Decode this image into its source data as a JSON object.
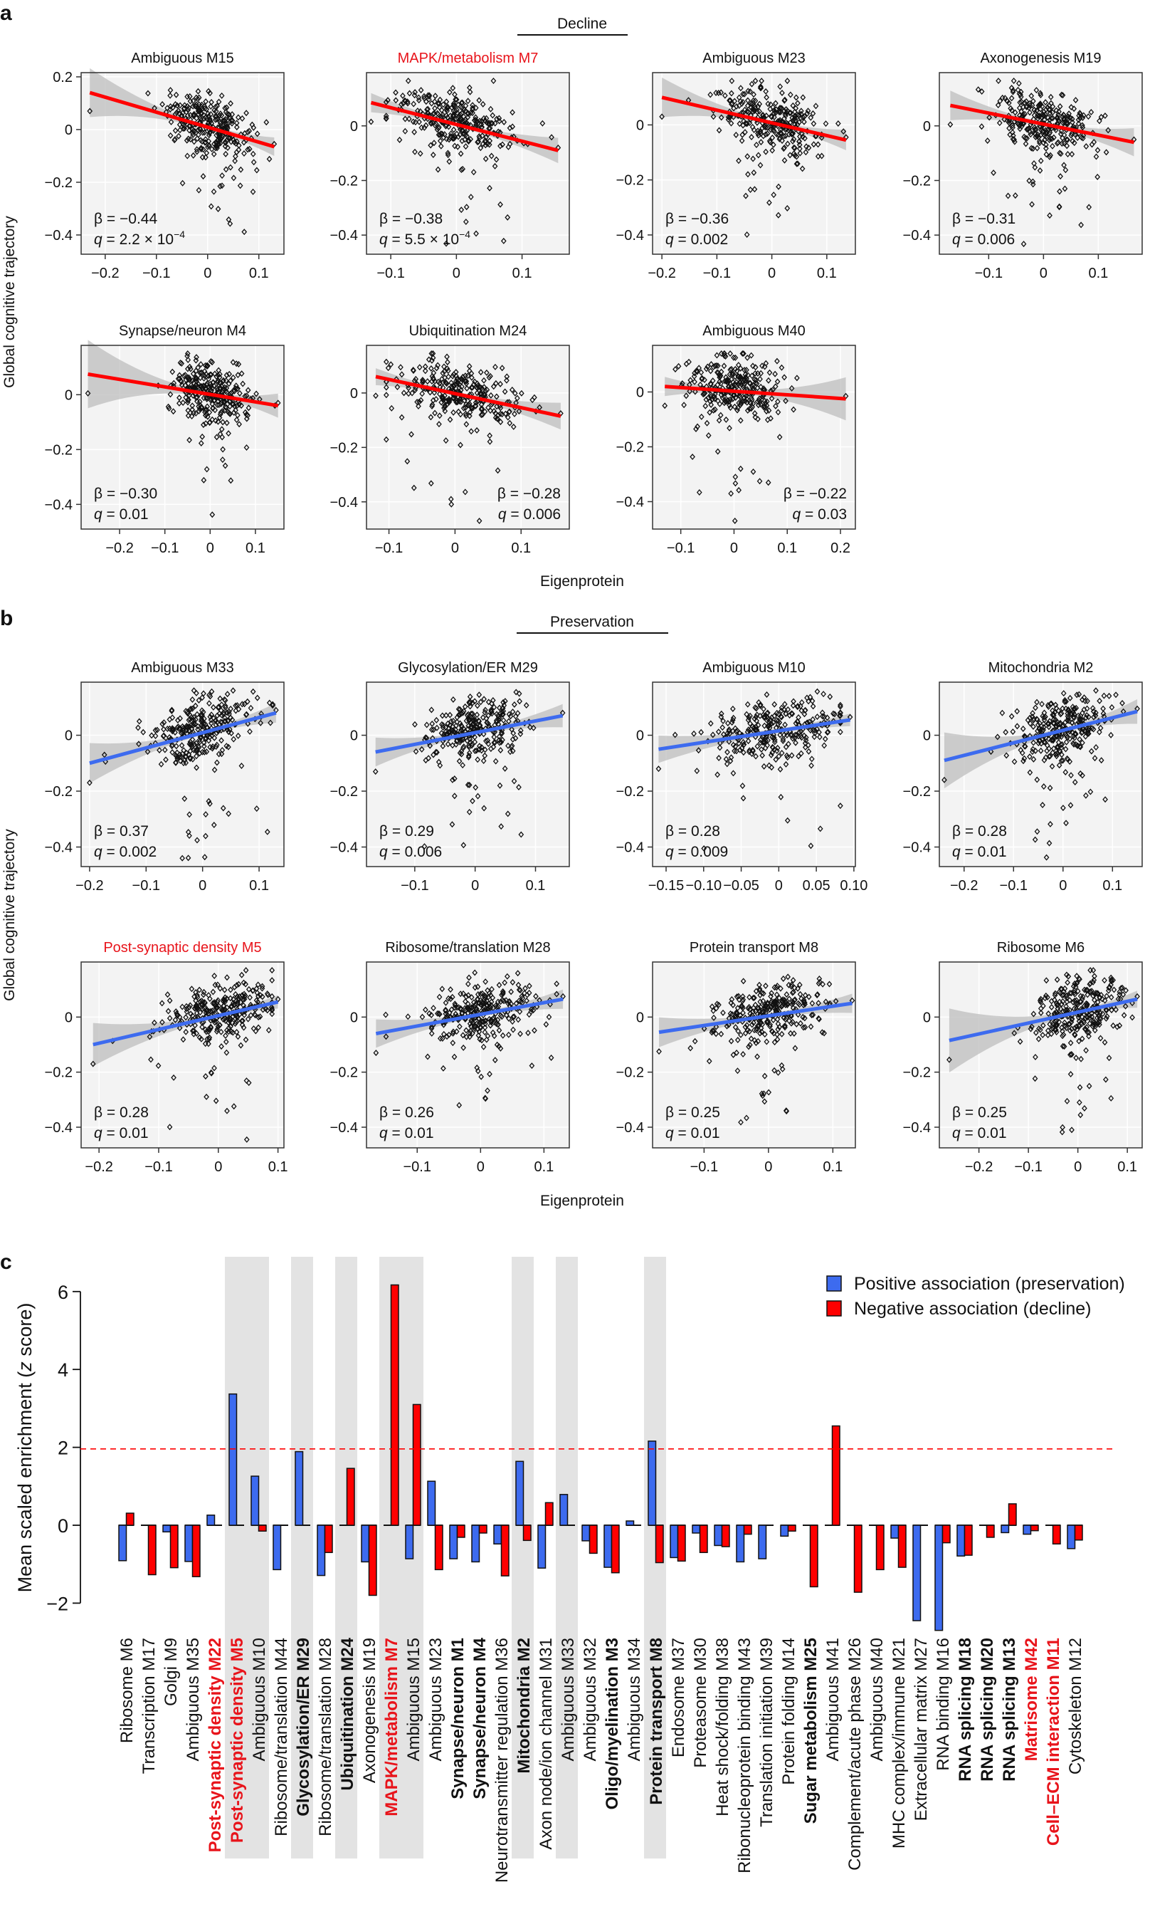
{
  "panel_a": {
    "label": "a",
    "group_title": "Decline"
  },
  "panel_b": {
    "label": "b",
    "group_title": "Preservation"
  },
  "panel_c": {
    "label": "c"
  },
  "y_axis_label": "Global cognitive trajectory",
  "x_axis_label": "Eigenprotein",
  "stat_symbols": {
    "beta": "β",
    "q": "q",
    "equals": " = "
  },
  "colors": {
    "decline": "#ff0000",
    "preservation": "#3d6bef",
    "highlight_title": "#e8141b",
    "band": "#bdbdbd",
    "shade": "#e3e3e3"
  },
  "chart_data": [
    {
      "type": "scatter",
      "panel": "a",
      "title": "Ambiguous M15",
      "title_color": "#111111",
      "beta": "−0.44",
      "q": "2.2 × 10",
      "q_exp": "−4",
      "xlim": [
        -0.247,
        0.149
      ],
      "ylim": [
        -0.473,
        0.216
      ],
      "xticks": [
        "−0.2",
        "−0.1",
        "0",
        "0.1"
      ],
      "yticks": [
        "0.2",
        "0",
        "−0.2",
        "−0.4"
      ],
      "fit_line": {
        "x": [
          -0.23,
          0.13
        ],
        "y": [
          0.14,
          -0.065
        ]
      },
      "line_color": "#ff0000",
      "stats_position": "bottom-left"
    },
    {
      "type": "scatter",
      "panel": "a",
      "title": "MAPK/metabolism M7",
      "title_color": "#e8141b",
      "beta": "−0.38",
      "q": "5.5 × 10",
      "q_exp": "−4",
      "xlim": [
        -0.137,
        0.172
      ],
      "ylim": [
        -0.47,
        0.195
      ],
      "xticks": [
        "−0.1",
        "0",
        "0.1"
      ],
      "yticks": [
        "0",
        "−0.2",
        "−0.4"
      ],
      "fit_line": {
        "x": [
          -0.13,
          0.155
        ],
        "y": [
          0.085,
          -0.09
        ]
      },
      "line_color": "#ff0000",
      "stats_position": "bottom-left"
    },
    {
      "type": "scatter",
      "panel": "a",
      "title": "Ambiguous M23",
      "title_color": "#111111",
      "beta": "−0.36",
      "q": "0.002",
      "xlim": [
        -0.217,
        0.152
      ],
      "ylim": [
        -0.47,
        0.19
      ],
      "xticks": [
        "−0.2",
        "−0.1",
        "0",
        "0.1"
      ],
      "yticks": [
        "0",
        "−0.2",
        "−0.4"
      ],
      "fit_line": {
        "x": [
          -0.2,
          0.135
        ],
        "y": [
          0.1,
          -0.055
        ]
      },
      "line_color": "#ff0000",
      "stats_position": "bottom-left"
    },
    {
      "type": "scatter",
      "panel": "a",
      "title": "Axonogenesis M19",
      "title_color": "#111111",
      "beta": "−0.31",
      "q": "0.006",
      "xlim": [
        -0.19,
        0.18
      ],
      "ylim": [
        -0.47,
        0.195
      ],
      "xticks": [
        "−0.1",
        "0",
        "0.1"
      ],
      "yticks": [
        "0",
        "−0.2",
        "−0.4"
      ],
      "fit_line": {
        "x": [
          -0.17,
          0.165
        ],
        "y": [
          0.075,
          -0.06
        ]
      },
      "line_color": "#ff0000",
      "stats_position": "bottom-left"
    },
    {
      "type": "scatter",
      "panel": "a",
      "title": "Synapse/neuron M4",
      "title_color": "#111111",
      "beta": "−0.30",
      "q": "0.01",
      "xlim": [
        -0.285,
        0.163
      ],
      "ylim": [
        -0.49,
        0.18
      ],
      "xticks": [
        "−0.2",
        "−0.1",
        "0",
        "0.1"
      ],
      "yticks": [
        "0",
        "−0.2",
        "−0.4"
      ],
      "fit_line": {
        "x": [
          -0.27,
          0.15
        ],
        "y": [
          0.075,
          -0.04
        ]
      },
      "line_color": "#ff0000",
      "stats_position": "bottom-left"
    },
    {
      "type": "scatter",
      "panel": "a",
      "title": "Ubiquitination M24",
      "title_color": "#111111",
      "beta": "−0.28",
      "q": "0.006",
      "xlim": [
        -0.134,
        0.173
      ],
      "ylim": [
        -0.5,
        0.175
      ],
      "xticks": [
        "−0.1",
        "0",
        "0.1"
      ],
      "yticks": [
        "0",
        "−0.2",
        "−0.4"
      ],
      "fit_line": {
        "x": [
          -0.12,
          0.16
        ],
        "y": [
          0.06,
          -0.085
        ]
      },
      "line_color": "#ff0000",
      "stats_position": "bottom-right"
    },
    {
      "type": "scatter",
      "panel": "a",
      "title": "Ambiguous M40",
      "title_color": "#111111",
      "beta": "−0.22",
      "q": "0.03",
      "xlim": [
        -0.153,
        0.228
      ],
      "ylim": [
        -0.5,
        0.17
      ],
      "xticks": [
        "−0.1",
        "0",
        "0.1",
        "0.2"
      ],
      "yticks": [
        "0",
        "−0.2",
        "−0.4"
      ],
      "fit_line": {
        "x": [
          -0.13,
          0.21
        ],
        "y": [
          0.02,
          -0.025
        ]
      },
      "line_color": "#ff0000",
      "stats_position": "bottom-right"
    },
    {
      "type": "scatter",
      "panel": "b",
      "title": "Ambiguous M33",
      "title_color": "#111111",
      "beta": "0.37",
      "q": "0.002",
      "xlim": [
        -0.215,
        0.144
      ],
      "ylim": [
        -0.47,
        0.19
      ],
      "xticks": [
        "−0.2",
        "−0.1",
        "0",
        "0.1"
      ],
      "yticks": [
        "0",
        "−0.2",
        "−0.4"
      ],
      "fit_line": {
        "x": [
          -0.2,
          0.13
        ],
        "y": [
          -0.1,
          0.08
        ]
      },
      "line_color": "#3d6bef",
      "stats_position": "bottom-left"
    },
    {
      "type": "scatter",
      "panel": "b",
      "title": "Glycosylation/ER M29",
      "title_color": "#111111",
      "beta": "0.29",
      "q": "0.006",
      "xlim": [
        -0.18,
        0.156
      ],
      "ylim": [
        -0.47,
        0.19
      ],
      "xticks": [
        "−0.1",
        "0",
        "0.1"
      ],
      "yticks": [
        "0",
        "−0.2",
        "−0.4"
      ],
      "fit_line": {
        "x": [
          -0.165,
          0.145
        ],
        "y": [
          -0.06,
          0.07
        ]
      },
      "line_color": "#3d6bef",
      "stats_position": "bottom-left"
    },
    {
      "type": "scatter",
      "panel": "b",
      "title": "Ambiguous M10",
      "title_color": "#111111",
      "beta": "0.28",
      "q": "0.009",
      "xlim": [
        -0.168,
        0.102
      ],
      "ylim": [
        -0.47,
        0.19
      ],
      "xticks": [
        "−0.15",
        "−0.10",
        "−0.05",
        "0",
        "0.05",
        "0.10"
      ],
      "yticks": [
        "0",
        "−0.2",
        "−0.4"
      ],
      "fit_line": {
        "x": [
          -0.16,
          0.095
        ],
        "y": [
          -0.05,
          0.055
        ]
      },
      "line_color": "#3d6bef",
      "stats_position": "bottom-left"
    },
    {
      "type": "scatter",
      "panel": "b",
      "title": "Mitochondria M2",
      "title_color": "#111111",
      "beta": "0.28",
      "q": "0.01",
      "xlim": [
        -0.25,
        0.16
      ],
      "ylim": [
        -0.47,
        0.19
      ],
      "xticks": [
        "−0.2",
        "−0.1",
        "0",
        "0.1"
      ],
      "yticks": [
        "0",
        "−0.2",
        "−0.4"
      ],
      "fit_line": {
        "x": [
          -0.24,
          0.15
        ],
        "y": [
          -0.09,
          0.085
        ]
      },
      "line_color": "#3d6bef",
      "stats_position": "bottom-left"
    },
    {
      "type": "scatter",
      "panel": "b",
      "title": "Post-synaptic density M5",
      "title_color": "#e8141b",
      "beta": "0.28",
      "q": "0.01",
      "xlim": [
        -0.23,
        0.11
      ],
      "ylim": [
        -0.475,
        0.2
      ],
      "xticks": [
        "−0.2",
        "−0.1",
        "0",
        "0.1"
      ],
      "yticks": [
        "0",
        "−0.2",
        "−0.4"
      ],
      "fit_line": {
        "x": [
          -0.21,
          0.1
        ],
        "y": [
          -0.1,
          0.055
        ]
      },
      "line_color": "#3d6bef",
      "stats_position": "bottom-left"
    },
    {
      "type": "scatter",
      "panel": "b",
      "title": "Ribosome/translation M28",
      "title_color": "#111111",
      "beta": "0.26",
      "q": "0.01",
      "xlim": [
        -0.18,
        0.14
      ],
      "ylim": [
        -0.475,
        0.2
      ],
      "xticks": [
        "−0.1",
        "0",
        "0.1"
      ],
      "yticks": [
        "0",
        "−0.2",
        "−0.4"
      ],
      "fit_line": {
        "x": [
          -0.165,
          0.13
        ],
        "y": [
          -0.06,
          0.065
        ]
      },
      "line_color": "#3d6bef",
      "stats_position": "bottom-left"
    },
    {
      "type": "scatter",
      "panel": "b",
      "title": "Protein transport M8",
      "title_color": "#111111",
      "beta": "0.25",
      "q": "0.01",
      "xlim": [
        -0.18,
        0.135
      ],
      "ylim": [
        -0.475,
        0.2
      ],
      "xticks": [
        "−0.1",
        "0",
        "0.1"
      ],
      "yticks": [
        "0",
        "−0.2",
        "−0.4"
      ],
      "fit_line": {
        "x": [
          -0.17,
          0.13
        ],
        "y": [
          -0.055,
          0.05
        ]
      },
      "line_color": "#3d6bef",
      "stats_position": "bottom-left"
    },
    {
      "type": "scatter",
      "panel": "b",
      "title": "Ribosome M6",
      "title_color": "#111111",
      "beta": "0.25",
      "q": "0.01",
      "xlim": [
        -0.28,
        0.13
      ],
      "ylim": [
        -0.475,
        0.2
      ],
      "xticks": [
        "−0.2",
        "−0.1",
        "0",
        "0.1"
      ],
      "yticks": [
        "0",
        "−0.2",
        "−0.4"
      ],
      "fit_line": {
        "x": [
          -0.26,
          0.12
        ],
        "y": [
          -0.085,
          0.065
        ]
      },
      "line_color": "#3d6bef",
      "stats_position": "bottom-left"
    },
    {
      "type": "bar",
      "panel": "c",
      "ylabel_prefix": "Mean scaled enrichment (",
      "ylabel_italic": "z",
      "ylabel_suffix": " score)",
      "ylim": [
        -2,
        6
      ],
      "yticks": [
        "6",
        "4",
        "2",
        "0",
        "−2"
      ],
      "threshold": 1.96,
      "threshold_style": "dashed red",
      "legend_position": "top-right",
      "categories": [
        "Ribosome M6",
        "Transcription M17",
        "Golgi M9",
        "Ambiguous M35",
        "Post-synaptic density M22",
        "Post-synaptic density M5",
        "Ambiguous M10",
        "Ribosome/translation M44",
        "Glycosylation/ER M29",
        "Ribosome/translation M28",
        "Ubiquitination M24",
        "Axonogenesis M19",
        "MAPK/metabolism M7",
        "Ambiguous M15",
        "Ambiguous M23",
        "Synapse/neuron M1",
        "Synapse/neuron M4",
        "Neurotransmitter regulation M36",
        "Mitochondria M2",
        "Axon node/ion channel M31",
        "Ambiguous M33",
        "Ambiguous M32",
        "Oligo/myelination M3",
        "Ambiguous M34",
        "Protein transport M8",
        "Endosome M37",
        "Proteasome M30",
        "Heat shock/folding M38",
        "Ribonucleoprotein binding M43",
        "Translation initiation M39",
        "Protein folding M14",
        "Sugar metabolism M25",
        "Ambiguous M41",
        "Complement/acute phase M26",
        "Ambiguous M40",
        "MHC complex/immune M21",
        "Extracellular matrix M27",
        "RNA binding M16",
        "RNA splicing M18",
        "RNA splicing M20",
        "RNA splicing M13",
        "Matrisome M42",
        "Cell–ECM interaction M11",
        "Cytoskeleton M12"
      ],
      "bold": [
        false,
        false,
        false,
        false,
        true,
        true,
        false,
        false,
        true,
        false,
        true,
        false,
        true,
        false,
        false,
        true,
        true,
        false,
        true,
        false,
        false,
        false,
        true,
        false,
        true,
        false,
        false,
        false,
        false,
        false,
        false,
        true,
        false,
        false,
        false,
        false,
        false,
        false,
        true,
        true,
        true,
        true,
        true,
        false
      ],
      "red_label": [
        false,
        false,
        false,
        false,
        true,
        true,
        false,
        false,
        false,
        false,
        false,
        false,
        true,
        false,
        false,
        false,
        false,
        false,
        false,
        false,
        false,
        false,
        false,
        false,
        false,
        false,
        false,
        false,
        false,
        false,
        false,
        false,
        false,
        false,
        false,
        false,
        false,
        false,
        false,
        false,
        false,
        true,
        true,
        false
      ],
      "shaded": [
        false,
        false,
        false,
        false,
        false,
        true,
        true,
        false,
        true,
        false,
        true,
        false,
        true,
        true,
        false,
        false,
        false,
        false,
        true,
        false,
        true,
        false,
        false,
        false,
        true,
        false,
        false,
        false,
        false,
        false,
        false,
        false,
        false,
        false,
        false,
        false,
        false,
        false,
        false,
        false,
        false,
        false,
        false,
        false
      ],
      "series": [
        {
          "name": "Positive association (preservation)",
          "color": "#3d6bef",
          "values": [
            -0.91,
            0,
            -0.17,
            -0.93,
            0.26,
            3.37,
            1.26,
            -1.14,
            1.89,
            -1.29,
            0,
            -0.94,
            0,
            -0.86,
            1.13,
            -0.86,
            -0.94,
            -0.48,
            1.64,
            -1.1,
            0.79,
            -0.4,
            -1.08,
            0.11,
            2.16,
            -0.83,
            -0.2,
            -0.52,
            -0.94,
            -0.86,
            -0.28,
            0,
            0,
            0,
            0,
            -0.33,
            -2.45,
            -2.7,
            -0.79,
            0,
            -0.19,
            -0.23,
            0,
            -0.6
          ]
        },
        {
          "name": "Negative association (decline)",
          "color": "#ff0000",
          "values": [
            0.31,
            -1.27,
            -1.09,
            -1.32,
            0,
            0,
            -0.15,
            0,
            0,
            -0.7,
            1.46,
            -1.8,
            6.17,
            3.1,
            -1.14,
            -0.31,
            -0.2,
            -1.3,
            -0.39,
            0.58,
            0,
            -0.72,
            -1.22,
            0,
            -0.96,
            -0.92,
            -0.7,
            -0.55,
            -0.23,
            0,
            -0.15,
            -1.58,
            2.55,
            -1.72,
            -1.14,
            -1.08,
            0,
            -0.45,
            -0.77,
            -0.31,
            0.55,
            -0.14,
            -0.48,
            -0.38
          ]
        }
      ]
    }
  ]
}
